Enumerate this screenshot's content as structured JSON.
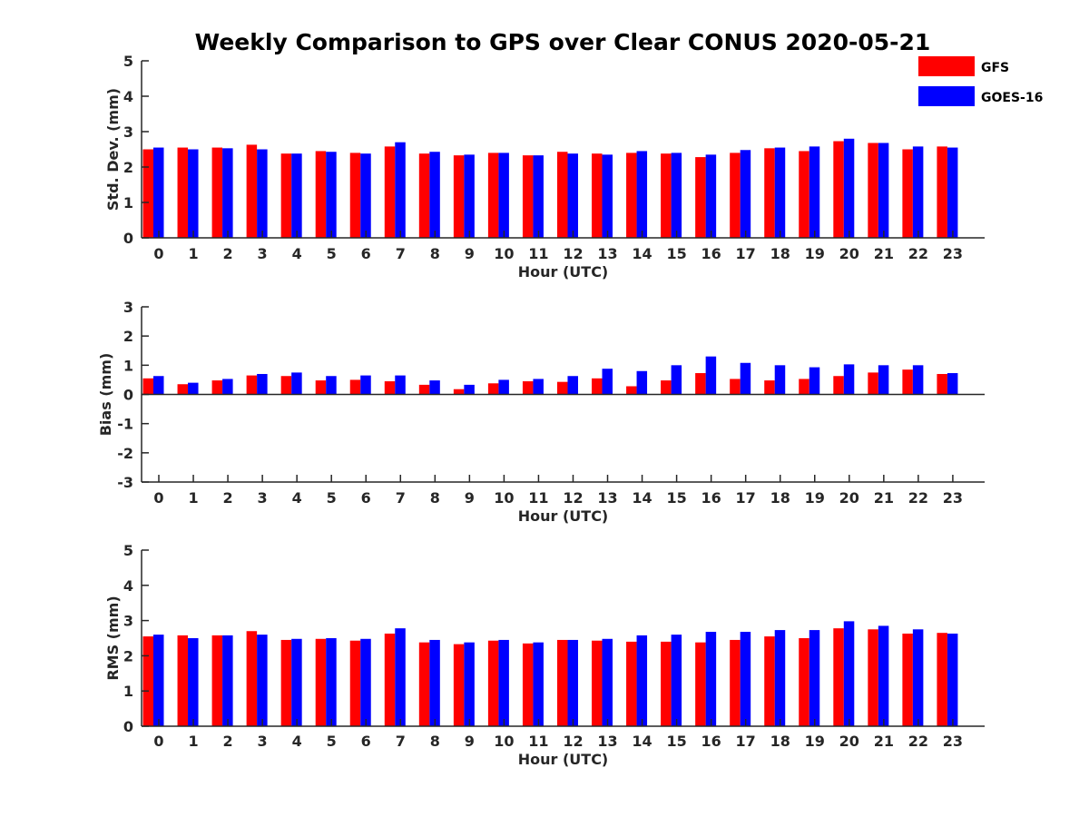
{
  "figure": {
    "title": "Weekly Comparison to GPS over Clear CONUS 2020-05-21"
  },
  "legend": [
    {
      "name": "GFS",
      "color": "#ff0000"
    },
    {
      "name": "GOES-16",
      "color": "#0000ff"
    }
  ],
  "chart_data": [
    {
      "type": "bar",
      "xlabel": "Hour (UTC)",
      "ylabel": "Std. Dev. (mm)",
      "ylim": [
        0,
        5
      ],
      "yticks": [
        "0",
        "1",
        "2",
        "3",
        "4",
        "5"
      ],
      "categories": [
        "0",
        "1",
        "2",
        "3",
        "4",
        "5",
        "6",
        "7",
        "8",
        "9",
        "10",
        "11",
        "12",
        "13",
        "14",
        "15",
        "16",
        "17",
        "18",
        "19",
        "20",
        "21",
        "22",
        "23"
      ],
      "series": [
        {
          "name": "GFS",
          "color": "#ff0000",
          "values": [
            2.5,
            2.55,
            2.55,
            2.63,
            2.38,
            2.45,
            2.4,
            2.58,
            2.38,
            2.33,
            2.4,
            2.33,
            2.43,
            2.38,
            2.4,
            2.38,
            2.28,
            2.4,
            2.53,
            2.45,
            2.73,
            2.68,
            2.5,
            2.58
          ]
        },
        {
          "name": "GOES-16",
          "color": "#0000ff",
          "values": [
            2.55,
            2.5,
            2.53,
            2.5,
            2.38,
            2.43,
            2.38,
            2.7,
            2.43,
            2.35,
            2.4,
            2.33,
            2.38,
            2.35,
            2.45,
            2.4,
            2.35,
            2.48,
            2.55,
            2.58,
            2.8,
            2.68,
            2.58,
            2.55
          ]
        }
      ]
    },
    {
      "type": "bar",
      "xlabel": "Hour (UTC)",
      "ylabel": "Bias (mm)",
      "ylim": [
        -3,
        3
      ],
      "yticks": [
        "-3",
        "-2",
        "-1",
        "0",
        "1",
        "2",
        "3"
      ],
      "categories": [
        "0",
        "1",
        "2",
        "3",
        "4",
        "5",
        "6",
        "7",
        "8",
        "9",
        "10",
        "11",
        "12",
        "13",
        "14",
        "15",
        "16",
        "17",
        "18",
        "19",
        "20",
        "21",
        "22",
        "23"
      ],
      "series": [
        {
          "name": "GFS",
          "color": "#ff0000",
          "values": [
            0.55,
            0.35,
            0.48,
            0.65,
            0.63,
            0.48,
            0.5,
            0.45,
            0.33,
            0.18,
            0.38,
            0.45,
            0.43,
            0.55,
            0.28,
            0.48,
            0.73,
            0.53,
            0.48,
            0.53,
            0.63,
            0.75,
            0.85,
            0.7
          ]
        },
        {
          "name": "GOES-16",
          "color": "#0000ff",
          "values": [
            0.63,
            0.4,
            0.53,
            0.7,
            0.75,
            0.63,
            0.65,
            0.65,
            0.48,
            0.33,
            0.5,
            0.53,
            0.63,
            0.88,
            0.8,
            1.0,
            1.3,
            1.08,
            1.0,
            0.93,
            1.03,
            1.0,
            1.0,
            0.73
          ]
        }
      ]
    },
    {
      "type": "bar",
      "xlabel": "Hour (UTC)",
      "ylabel": "RMS (mm)",
      "ylim": [
        0,
        5
      ],
      "yticks": [
        "0",
        "1",
        "2",
        "3",
        "4",
        "5"
      ],
      "categories": [
        "0",
        "1",
        "2",
        "3",
        "4",
        "5",
        "6",
        "7",
        "8",
        "9",
        "10",
        "11",
        "12",
        "13",
        "14",
        "15",
        "16",
        "17",
        "18",
        "19",
        "20",
        "21",
        "22",
        "23"
      ],
      "series": [
        {
          "name": "GFS",
          "color": "#ff0000",
          "values": [
            2.55,
            2.58,
            2.58,
            2.7,
            2.45,
            2.48,
            2.43,
            2.63,
            2.38,
            2.33,
            2.43,
            2.35,
            2.45,
            2.43,
            2.4,
            2.4,
            2.38,
            2.45,
            2.55,
            2.5,
            2.78,
            2.75,
            2.63,
            2.65
          ]
        },
        {
          "name": "GOES-16",
          "color": "#0000ff",
          "values": [
            2.6,
            2.5,
            2.58,
            2.6,
            2.48,
            2.5,
            2.48,
            2.78,
            2.45,
            2.38,
            2.45,
            2.38,
            2.45,
            2.48,
            2.58,
            2.6,
            2.68,
            2.68,
            2.73,
            2.73,
            2.98,
            2.85,
            2.75,
            2.63
          ]
        }
      ]
    }
  ]
}
